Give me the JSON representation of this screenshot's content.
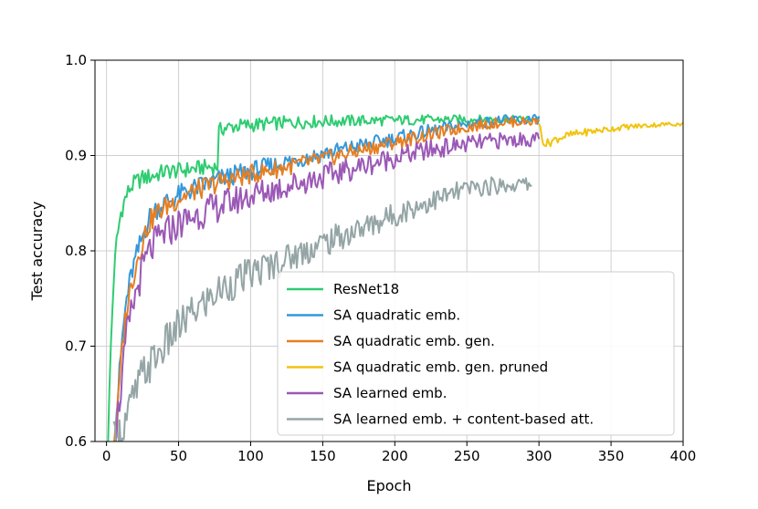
{
  "chart_data": {
    "type": "line",
    "title": "",
    "xlabel": "Epoch",
    "ylabel": "Test accuracy",
    "xlim": [
      -8,
      400
    ],
    "ylim": [
      0.6,
      1.0
    ],
    "xticks": [
      0,
      50,
      100,
      150,
      200,
      250,
      300,
      350,
      400
    ],
    "yticks": [
      0.6,
      0.7,
      0.8,
      0.9,
      1.0
    ],
    "xtick_labels": [
      "0",
      "50",
      "100",
      "150",
      "200",
      "250",
      "300",
      "350",
      "400"
    ],
    "ytick_labels": [
      "0.6",
      "0.7",
      "0.8",
      "0.9",
      "1.0"
    ],
    "grid": true,
    "legend_position": "lower-right",
    "series": [
      {
        "name": "ResNet18",
        "color": "#2ecc71",
        "x": [
          1,
          3,
          5,
          7,
          10,
          13,
          16,
          20,
          25,
          30,
          35,
          40,
          45,
          50,
          55,
          60,
          65,
          70,
          75,
          77,
          78,
          80,
          90,
          100,
          120,
          150,
          200,
          250,
          300
        ],
        "y": [
          0.6,
          0.7,
          0.77,
          0.81,
          0.84,
          0.855,
          0.865,
          0.872,
          0.876,
          0.878,
          0.88,
          0.883,
          0.884,
          0.884,
          0.885,
          0.886,
          0.887,
          0.888,
          0.888,
          0.889,
          0.925,
          0.928,
          0.931,
          0.932,
          0.934,
          0.936,
          0.937,
          0.938,
          0.938
        ]
      },
      {
        "name": "SA quadratic emb.",
        "color": "#3498db",
        "x": [
          5,
          8,
          11,
          14,
          18,
          22,
          26,
          30,
          35,
          40,
          50,
          60,
          80,
          100,
          125,
          150,
          175,
          200,
          225,
          250,
          275,
          300
        ],
        "y": [
          0.6,
          0.65,
          0.71,
          0.75,
          0.78,
          0.8,
          0.82,
          0.835,
          0.845,
          0.85,
          0.858,
          0.865,
          0.876,
          0.884,
          0.893,
          0.902,
          0.91,
          0.918,
          0.926,
          0.933,
          0.937,
          0.938
        ]
      },
      {
        "name": "SA quadratic emb. gen.",
        "color": "#e67e22",
        "x": [
          5,
          8,
          11,
          14,
          18,
          22,
          26,
          30,
          35,
          40,
          50,
          60,
          80,
          100,
          125,
          150,
          175,
          200,
          225,
          250,
          275,
          300
        ],
        "y": [
          0.6,
          0.64,
          0.7,
          0.74,
          0.77,
          0.795,
          0.815,
          0.83,
          0.84,
          0.845,
          0.855,
          0.862,
          0.873,
          0.88,
          0.888,
          0.896,
          0.905,
          0.914,
          0.922,
          0.93,
          0.935,
          0.936
        ]
      },
      {
        "name": "SA quadratic emb. gen. pruned",
        "color": "#f1c40f",
        "x": [
          300,
          302,
          305,
          310,
          315,
          320,
          330,
          340,
          350,
          360,
          370,
          380,
          390,
          400
        ],
        "y": [
          0.936,
          0.918,
          0.912,
          0.916,
          0.919,
          0.921,
          0.924,
          0.926,
          0.928,
          0.93,
          0.931,
          0.932,
          0.933,
          0.933
        ]
      },
      {
        "name": "SA learned emb.",
        "color": "#9b59b6",
        "x": [
          5,
          8,
          11,
          14,
          18,
          22,
          26,
          30,
          35,
          40,
          50,
          60,
          80,
          100,
          125,
          150,
          175,
          200,
          225,
          250,
          275,
          300
        ],
        "y": [
          0.6,
          0.63,
          0.67,
          0.71,
          0.74,
          0.765,
          0.785,
          0.8,
          0.81,
          0.818,
          0.828,
          0.836,
          0.848,
          0.858,
          0.868,
          0.878,
          0.888,
          0.898,
          0.906,
          0.912,
          0.916,
          0.917
        ]
      },
      {
        "name": "SA learned emb. + content-based att.",
        "color": "#95a5a6",
        "x": [
          5,
          10,
          15,
          20,
          25,
          30,
          40,
          50,
          60,
          70,
          80,
          90,
          100,
          125,
          150,
          175,
          200,
          225,
          250,
          275,
          295
        ],
        "y": [
          0.6,
          0.61,
          0.63,
          0.65,
          0.67,
          0.68,
          0.7,
          0.72,
          0.735,
          0.748,
          0.76,
          0.768,
          0.776,
          0.792,
          0.808,
          0.822,
          0.838,
          0.852,
          0.865,
          0.869,
          0.87
        ]
      }
    ]
  }
}
